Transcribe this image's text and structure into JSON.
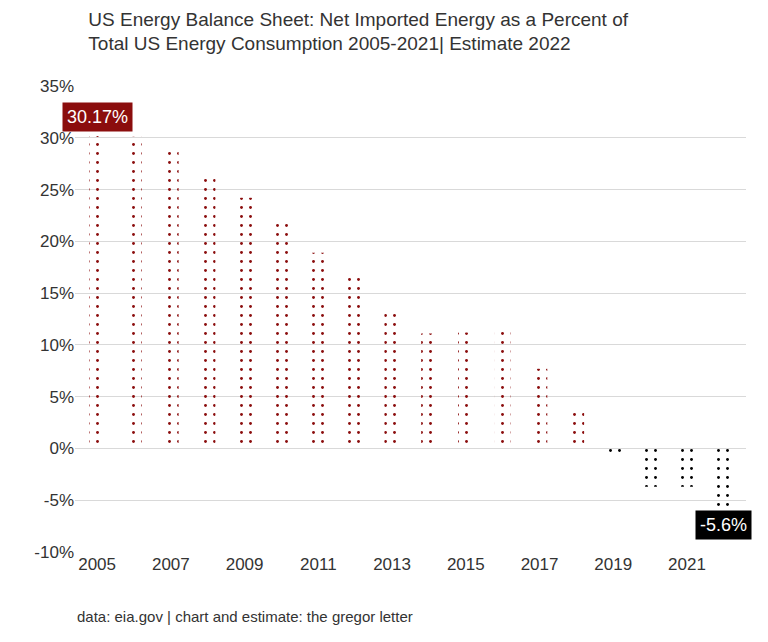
{
  "chart_data": {
    "type": "bar",
    "title": "US Energy Balance Sheet: Net Imported Energy as a Percent of\nTotal US Energy Consumption 2005-2021| Estimate 2022",
    "source": "data: eia.gov | chart and estimate: the gregor letter",
    "categories": [
      "2005",
      null,
      "2007",
      null,
      "2009",
      null,
      "2011",
      null,
      "2013",
      null,
      "2015",
      null,
      "2017",
      null,
      "2019",
      null,
      "2021",
      null
    ],
    "values": [
      30.17,
      30.1,
      29.0,
      26.3,
      24.2,
      22.2,
      18.9,
      16.7,
      13.2,
      11.1,
      11.2,
      11.5,
      7.7,
      3.5,
      -0.6,
      -3.7,
      -3.7,
      -5.6
    ],
    "value_labels": [
      "30.17%",
      null,
      null,
      null,
      null,
      null,
      null,
      null,
      null,
      null,
      null,
      null,
      null,
      null,
      null,
      null,
      null,
      "-5.6%"
    ],
    "colors": [
      "#8b0d0d",
      "#8b0d0d",
      "#8b0d0d",
      "#8b0d0d",
      "#8b0d0d",
      "#8b0d0d",
      "#8b0d0d",
      "#8b0d0d",
      "#8b0d0d",
      "#8b0d0d",
      "#8b0d0d",
      "#8b0d0d",
      "#8b0d0d",
      "#8b0d0d",
      "#000000",
      "#000000",
      "#000000",
      "#000000"
    ],
    "ylim": [
      -10,
      35
    ],
    "yticks": [
      {
        "value": -10,
        "label": "-10%"
      },
      {
        "value": -5,
        "label": "-5%"
      },
      {
        "value": 0,
        "label": "0%"
      },
      {
        "value": 5,
        "label": "5%"
      },
      {
        "value": 10,
        "label": "10%"
      },
      {
        "value": 15,
        "label": "15%"
      },
      {
        "value": 20,
        "label": "20%"
      },
      {
        "value": 25,
        "label": "25%"
      },
      {
        "value": 30,
        "label": "30%"
      },
      {
        "value": 35,
        "label": "35%"
      }
    ],
    "grid": true
  }
}
